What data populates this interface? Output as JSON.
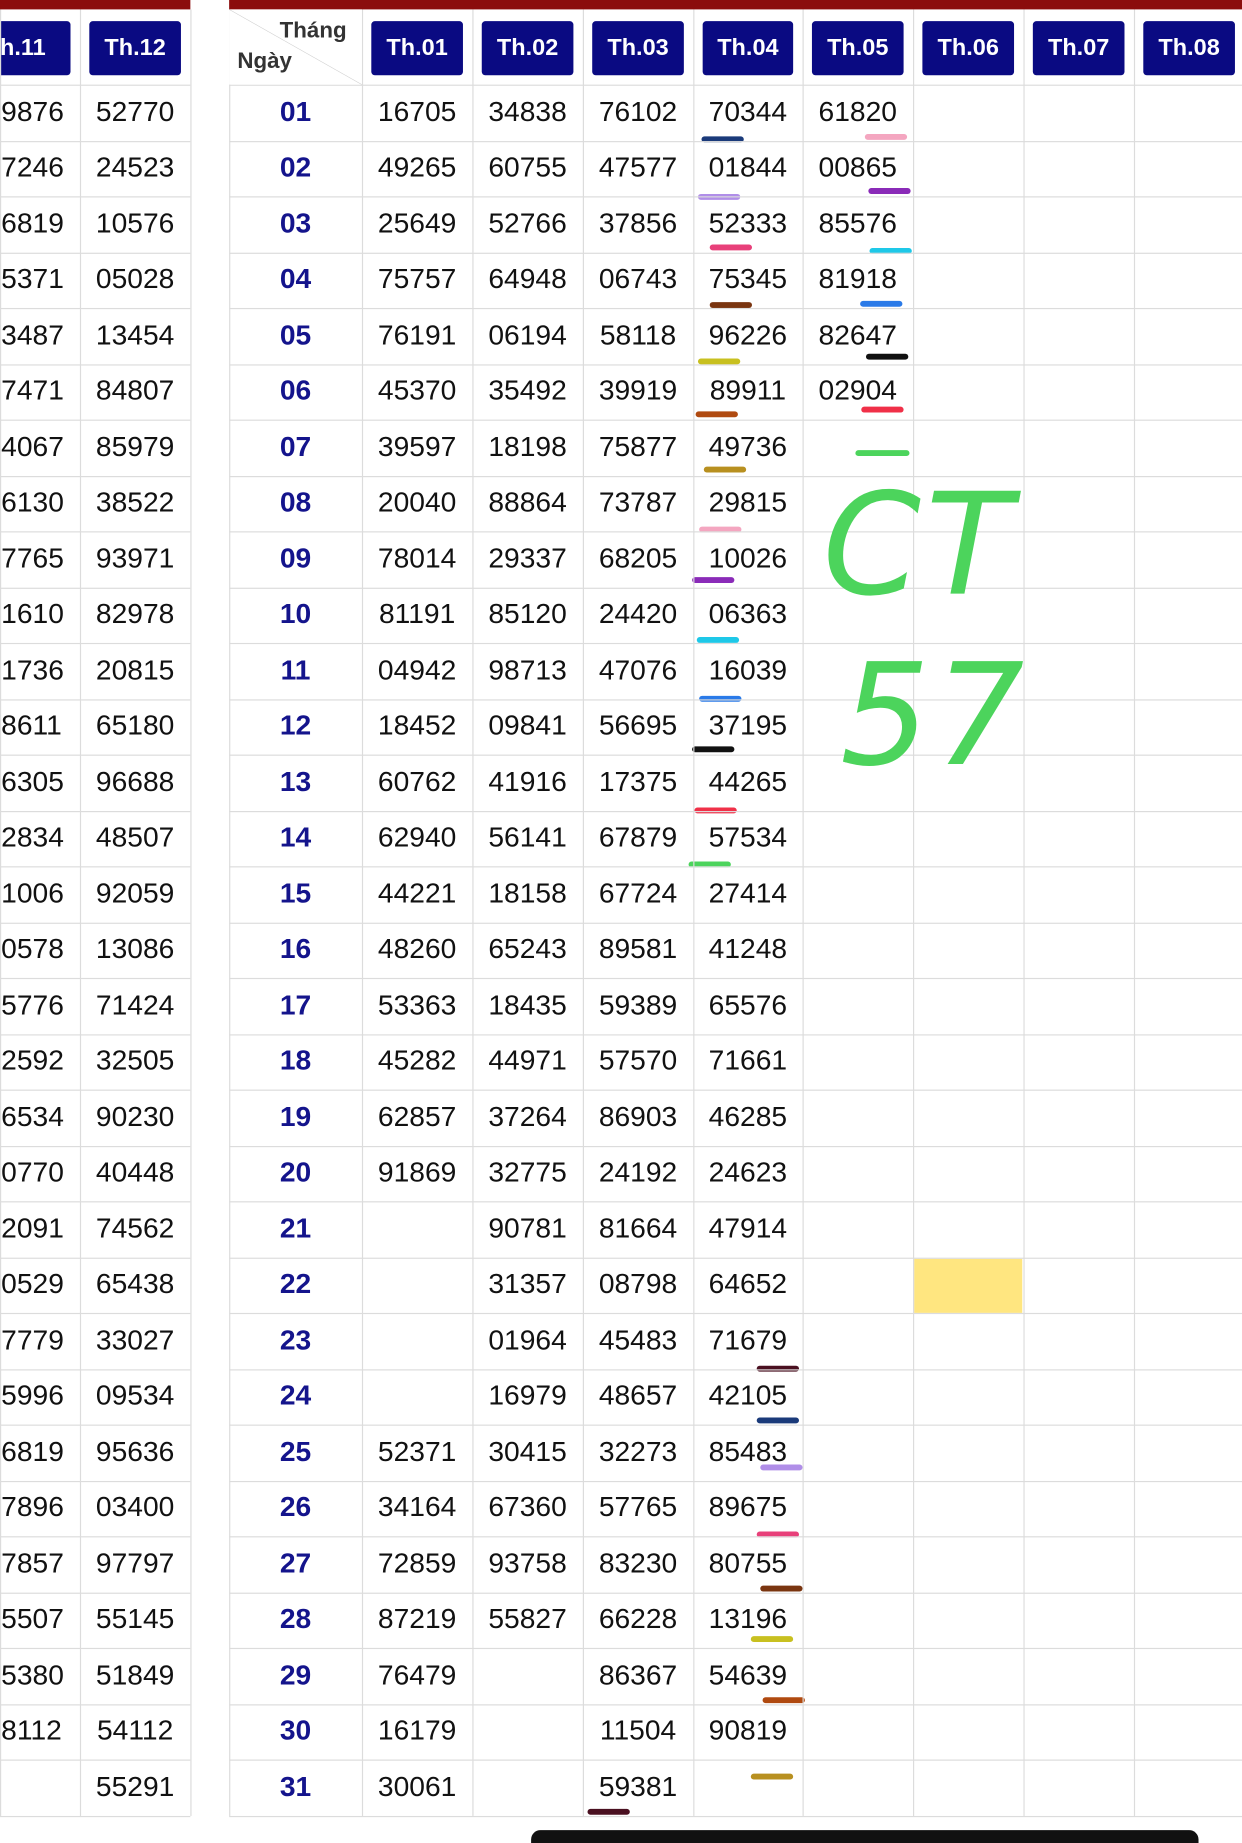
{
  "left_table": {
    "headers": [
      "h.11",
      "Th.12"
    ],
    "rows": [
      [
        "9876",
        "52770"
      ],
      [
        "7246",
        "24523"
      ],
      [
        "6819",
        "10576"
      ],
      [
        "5371",
        "05028"
      ],
      [
        "3487",
        "13454"
      ],
      [
        "7471",
        "84807"
      ],
      [
        "4067",
        "85979"
      ],
      [
        "6130",
        "38522"
      ],
      [
        "7765",
        "93971"
      ],
      [
        "1610",
        "82978"
      ],
      [
        "1736",
        "20815"
      ],
      [
        "8611",
        "65180"
      ],
      [
        "6305",
        "96688"
      ],
      [
        "2834",
        "48507"
      ],
      [
        "1006",
        "92059"
      ],
      [
        "0578",
        "13086"
      ],
      [
        "5776",
        "71424"
      ],
      [
        "2592",
        "32505"
      ],
      [
        "6534",
        "90230"
      ],
      [
        "0770",
        "40448"
      ],
      [
        "2091",
        "74562"
      ],
      [
        "0529",
        "65438"
      ],
      [
        "7779",
        "33027"
      ],
      [
        "5996",
        "09534"
      ],
      [
        "6819",
        "95636"
      ],
      [
        "7896",
        "03400"
      ],
      [
        "7857",
        "97797"
      ],
      [
        "5507",
        "55145"
      ],
      [
        "5380",
        "51849"
      ],
      [
        "8112",
        "54112"
      ],
      [
        null,
        "55291"
      ]
    ]
  },
  "right_table": {
    "corner_top": "Tháng",
    "corner_bottom": "Ngày",
    "headers": [
      "Th.01",
      "Th.02",
      "Th.03",
      "Th.04",
      "Th.05",
      "Th.06",
      "Th.07",
      "Th.08"
    ],
    "rows": [
      [
        "01",
        "16705",
        "34838",
        "76102",
        "70344",
        "61820",
        null,
        null,
        null
      ],
      [
        "02",
        "49265",
        "60755",
        "47577",
        "01844",
        "00865",
        null,
        null,
        null
      ],
      [
        "03",
        "25649",
        "52766",
        "37856",
        "52333",
        "85576",
        null,
        null,
        null
      ],
      [
        "04",
        "75757",
        "64948",
        "06743",
        "75345",
        "81918",
        null,
        null,
        null
      ],
      [
        "05",
        "76191",
        "06194",
        "58118",
        "96226",
        "82647",
        null,
        null,
        null
      ],
      [
        "06",
        "45370",
        "35492",
        "39919",
        "89911",
        "02904",
        null,
        null,
        null
      ],
      [
        "07",
        "39597",
        "18198",
        "75877",
        "49736",
        null,
        null,
        null,
        null
      ],
      [
        "08",
        "20040",
        "88864",
        "73787",
        "29815",
        null,
        null,
        null,
        null
      ],
      [
        "09",
        "78014",
        "29337",
        "68205",
        "10026",
        null,
        null,
        null,
        null
      ],
      [
        "10",
        "81191",
        "85120",
        "24420",
        "06363",
        null,
        null,
        null,
        null
      ],
      [
        "11",
        "04942",
        "98713",
        "47076",
        "16039",
        null,
        null,
        null,
        null
      ],
      [
        "12",
        "18452",
        "09841",
        "56695",
        "37195",
        null,
        null,
        null,
        null
      ],
      [
        "13",
        "60762",
        "41916",
        "17375",
        "44265",
        null,
        null,
        null,
        null
      ],
      [
        "14",
        "62940",
        "56141",
        "67879",
        "57534",
        null,
        null,
        null,
        null
      ],
      [
        "15",
        "44221",
        "18158",
        "67724",
        "27414",
        null,
        null,
        null,
        null
      ],
      [
        "16",
        "48260",
        "65243",
        "89581",
        "41248",
        null,
        null,
        null,
        null
      ],
      [
        "17",
        "53363",
        "18435",
        "59389",
        "65576",
        null,
        null,
        null,
        null
      ],
      [
        "18",
        "45282",
        "44971",
        "57570",
        "71661",
        null,
        null,
        null,
        null
      ],
      [
        "19",
        "62857",
        "37264",
        "86903",
        "46285",
        null,
        null,
        null,
        null
      ],
      [
        "20",
        "91869",
        "32775",
        "24192",
        "24623",
        null,
        null,
        null,
        null
      ],
      [
        "21",
        null,
        "90781",
        "81664",
        "47914",
        null,
        null,
        null,
        null
      ],
      [
        "22",
        null,
        "31357",
        "08798",
        "64652",
        null,
        null,
        null,
        null
      ],
      [
        "23",
        null,
        "01964",
        "45483",
        "71679",
        null,
        null,
        null,
        null
      ],
      [
        "24",
        null,
        "16979",
        "48657",
        "42105",
        null,
        null,
        null,
        null
      ],
      [
        "25",
        "52371",
        "30415",
        "32273",
        "85483",
        null,
        null,
        null,
        null
      ],
      [
        "26",
        "34164",
        "67360",
        "57765",
        "89675",
        null,
        null,
        null,
        null
      ],
      [
        "27",
        "72859",
        "93758",
        "83230",
        "80755",
        null,
        null,
        null,
        null
      ],
      [
        "28",
        "87219",
        "55827",
        "66228",
        "13196",
        null,
        null,
        null,
        null
      ],
      [
        "29",
        "76479",
        null,
        "86367",
        "54639",
        null,
        null,
        null,
        null
      ],
      [
        "30",
        "16179",
        null,
        "11504",
        "90819",
        null,
        null,
        null,
        null
      ],
      [
        "31",
        "30061",
        null,
        "59381",
        null,
        null,
        null,
        null,
        null
      ]
    ]
  },
  "annotation": {
    "line1": "CT",
    "line2": "57"
  }
}
